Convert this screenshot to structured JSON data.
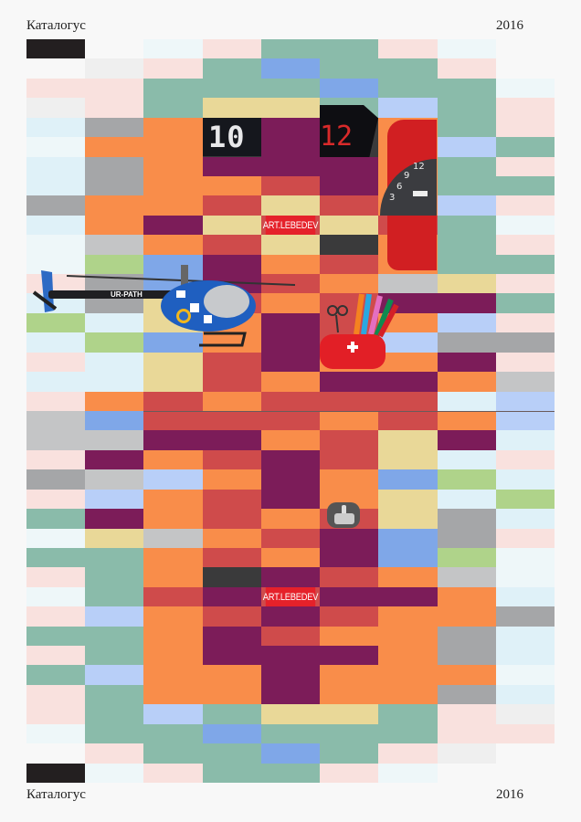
{
  "header": {
    "title": "Каталогус",
    "year": "2016"
  },
  "footer": {
    "title": "Каталогус",
    "year": "2016"
  },
  "mosaic": {
    "palette": {
      "K": "#231f20",
      "W": "#f8f8f8",
      "L": "#efefef",
      "C": "#eef7f9",
      "c": "#dff1f8",
      "P": "#f9e1de",
      "G": "#8abbaa",
      "B": "#7fa7e8",
      "b": "#b8cff8",
      "Y": "#e9d898",
      "O": "#f98d4a",
      "R": "#cf4b4b",
      "U": "#7c1c59",
      "A": "#a5a6a8",
      "S": "#c4c5c6",
      "g": "#afd38a",
      "D": "#3a3a3b"
    },
    "rows": [
      "KWCPGGPCW",
      "WLPGBGGPW",
      "PPGGGBGGC",
      "LPGYYGbGP",
      "cAODUDOGP",
      "COODUDObG",
      "cAOUUUOGP",
      "cAOORUOGG",
      "AOORYRObP",
      "cOUYRYRGC",
      "CSORYDOGP",
      "CgBUOROGG",
      "PABUROSYP",
      "cAYRORUUG",
      "gcYOUROb P",
      "cgBOURbAA",
      "PcYRUOOUP",
      "ccYROUUOS",
      "PORORRRcb",
      "SBRRRORObgx",
      "SSUUORYUc",
      "PUORURYcP",
      "ASbOUOBgc",
      "PbORUOYcg",
      "GUORORYAc",
      "CYSORUBAP",
      "GGOROUBgC",
      "PGODUROSC",
      "CGRURUUOc",
      "PbORUROOA",
      "GGOUROOAc",
      "PGOUUUOAc",
      "GbOOUOOOC",
      "PGOOUOOAc",
      "PGbGYYGPL",
      "CGGBGGGPP",
      "WPGGBGPLW",
      "KCPGGPCWW"
    ]
  },
  "objects": {
    "display_left": "10",
    "display_right": "12",
    "watch_numbers": [
      "3",
      "6",
      "9",
      "12"
    ],
    "helicopter_registration": "UR-PATH",
    "logo_top": "ART.LEBEDEV",
    "logo_bottom": "ART.LEBEDEV"
  }
}
